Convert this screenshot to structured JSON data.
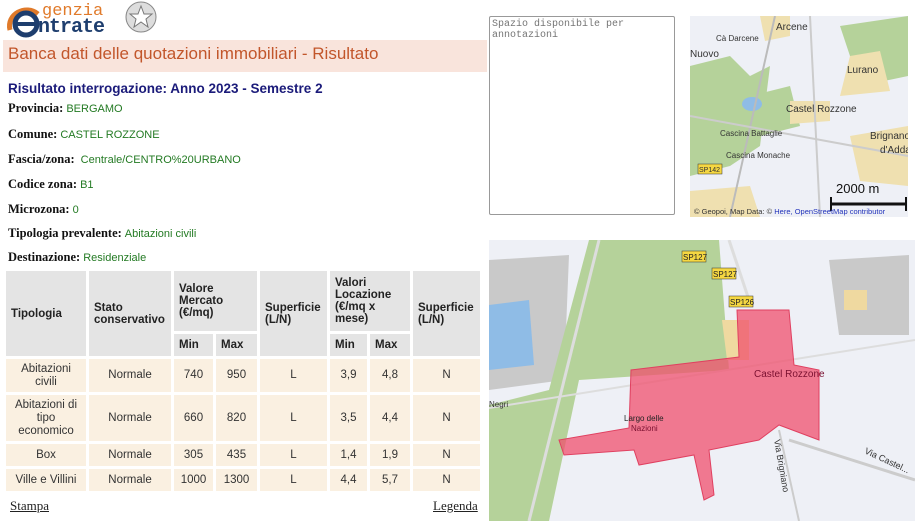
{
  "logo": {
    "line1": "genzia",
    "line2": "ntrate",
    "alt": "Agenzia Entrate"
  },
  "header": {
    "title": "Banca dati delle quotazioni immobiliari - Risultato"
  },
  "result": {
    "subtitle": "Risultato interrogazione: Anno 2023 - Semestre 2",
    "fields": [
      {
        "label": "Provincia:",
        "value": "BERGAMO"
      },
      {
        "label": "Comune:",
        "value": "CASTEL ROZZONE"
      },
      {
        "label": "Fascia/zona:",
        "value": "Centrale/CENTRO%20URBANO"
      },
      {
        "label": "Codice zona:",
        "value": "B1"
      },
      {
        "label": "Microzona:",
        "value": "0"
      },
      {
        "label": "Tipologia prevalente:",
        "value": "Abitazioni civili"
      },
      {
        "label": "Destinazione:",
        "value": "Residenziale"
      }
    ]
  },
  "table": {
    "headers": {
      "tipologia": "Tipologia",
      "stato": "Stato conservativo",
      "valore": "Valore Mercato (€/mq)",
      "superficie1": "Superficie (L/N)",
      "locazione": "Valori Locazione (€/mq x mese)",
      "superficie2": "Superficie (L/N)",
      "min": "Min",
      "max": "Max"
    },
    "rows": [
      [
        "Abitazioni civili",
        "Normale",
        "740",
        "950",
        "L",
        "3,9",
        "4,8",
        "N"
      ],
      [
        "Abitazioni di tipo economico",
        "Normale",
        "660",
        "820",
        "L",
        "3,5",
        "4,4",
        "N"
      ],
      [
        "Box",
        "Normale",
        "305",
        "435",
        "L",
        "1,4",
        "1,9",
        "N"
      ],
      [
        "Ville e Villini",
        "Normale",
        "1000",
        "1300",
        "L",
        "4,4",
        "5,7",
        "N"
      ]
    ]
  },
  "links": {
    "print": "Stampa",
    "legend": "Legenda"
  },
  "notes": {
    "placeholder": "Spazio disponibile per annotazioni"
  },
  "map_small": {
    "labels": [
      "Arcene",
      "Cà Darcene",
      "Nuovo",
      "Lurano",
      "Castel Rozzone",
      "Cascina Battaglie",
      "Brignano",
      "d'Adda",
      "Cascina Monache",
      "SP142"
    ],
    "scale": "2000 m",
    "attribution_prefix": "© Geopoi, Map Data: © ",
    "attribution_link": "Here, OpenStreetMap contributor"
  },
  "map_big": {
    "labels": [
      "Castel Rozzone",
      "Largo delle Nazioni",
      "Via Brigniano",
      "Via Castel...",
      "Negri"
    ],
    "road_signs": [
      "SP127",
      "SP127",
      "SP126"
    ],
    "zone_color": "#f0506e"
  }
}
